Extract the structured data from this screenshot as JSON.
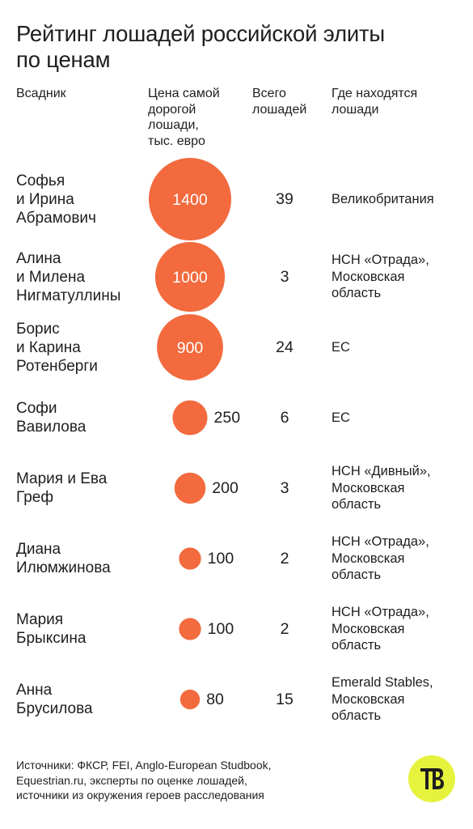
{
  "title": "Рейтинг лошадей российской элиты\nпо ценам",
  "headers": {
    "rider": "Всадник",
    "price": "Цена самой\nдорогой\nлошади,\nтыс. евро",
    "count": "Всего\nлошадей",
    "location": "Где находятся\nлошади"
  },
  "colors": {
    "bubble": "#f26a3d",
    "logo_bg": "#e6f33d",
    "text": "#1e1e1e"
  },
  "chart_data": {
    "type": "table",
    "columns": [
      "Всадник",
      "Цена самой дорогой лошади, тыс. евро",
      "Всего лошадей",
      "Где находятся лошади"
    ],
    "rows": [
      {
        "rider": "Софья\nи Ирина\nАбрамович",
        "price": 1400,
        "price_label": "1400",
        "count": "39",
        "location": "Великобритания"
      },
      {
        "rider": "Алина\nи Милена\nНигматуллины",
        "price": 1000,
        "price_label": "1000",
        "count": "3",
        "location": "НСН «Отрада»,\nМосковская\nобласть"
      },
      {
        "rider": "Борис\nи Карина\nРотенберги",
        "price": 900,
        "price_label": "900",
        "count": "24",
        "location": "ЕС"
      },
      {
        "rider": "Софи\nВавилова",
        "price": 250,
        "price_label": "250",
        "count": "6",
        "location": "ЕС"
      },
      {
        "rider": "Мария и Ева\nГреф",
        "price": 200,
        "price_label": "200",
        "count": "3",
        "location": "НСН «Дивный»,\nМосковская\nобласть"
      },
      {
        "rider": "Диана\nИлюмжинова",
        "price": 100,
        "price_label": "100",
        "count": "2",
        "location": "НСН «Отрада»,\nМосковская\nобласть"
      },
      {
        "rider": "Мария\nБрыксина",
        "price": 100,
        "price_label": "100",
        "count": "2",
        "location": "НСН «Отрада»,\nМосковская\nобласть"
      },
      {
        "rider": "Анна\nБрусилова",
        "price": 80,
        "price_label": "80",
        "count": "15",
        "location": "Emerald Stables,\nМосковская\nобласть"
      }
    ]
  },
  "footer": "Источники: ФКСР, FEI, Anglo-European Studbook,\nEquestrian.ru, эксперты по оценке лошадей,\nисточники из окружения героев расследования",
  "logo": {
    "icon": "tb-logo-icon"
  }
}
